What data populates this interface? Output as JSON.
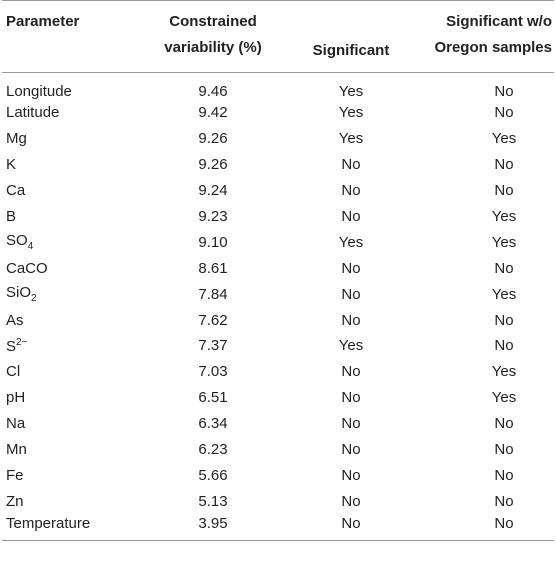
{
  "headers": {
    "parameter": "Parameter",
    "variability_line1": "Constrained",
    "variability_line2": "variability (%)",
    "significant": "Significant",
    "sig_wo_line1": "Significant w/o",
    "sig_wo_line2": "Oregon samples"
  },
  "rows": [
    {
      "name": "Longitude",
      "value": "9.46",
      "sig": "Yes",
      "sig_wo": "No"
    },
    {
      "name": "Latitude",
      "value": "9.42",
      "sig": "Yes",
      "sig_wo": "No"
    },
    {
      "name": "Mg",
      "value": "9.26",
      "sig": "Yes",
      "sig_wo": "Yes"
    },
    {
      "name": "K",
      "value": "9.26",
      "sig": "No",
      "sig_wo": "No"
    },
    {
      "name": "Ca",
      "value": "9.24",
      "sig": "No",
      "sig_wo": "No"
    },
    {
      "name": "B",
      "value": "9.23",
      "sig": "No",
      "sig_wo": "Yes"
    },
    {
      "name_base": "SO",
      "name_sub": "4",
      "value": "9.10",
      "sig": "Yes",
      "sig_wo": "Yes"
    },
    {
      "name": "CaCO",
      "value": "8.61",
      "sig": "No",
      "sig_wo": "No"
    },
    {
      "name_base": "SiO",
      "name_sub": "2",
      "value": "7.84",
      "sig": "No",
      "sig_wo": "Yes"
    },
    {
      "name": "As",
      "value": "7.62",
      "sig": "No",
      "sig_wo": "No"
    },
    {
      "name_base": "S",
      "name_sup": "2−",
      "value": "7.37",
      "sig": "Yes",
      "sig_wo": "No"
    },
    {
      "name": "Cl",
      "value": "7.03",
      "sig": "No",
      "sig_wo": "Yes"
    },
    {
      "name": "pH",
      "value": "6.51",
      "sig": "No",
      "sig_wo": "Yes"
    },
    {
      "name": "Na",
      "value": "6.34",
      "sig": "No",
      "sig_wo": "No"
    },
    {
      "name": "Mn",
      "value": "6.23",
      "sig": "No",
      "sig_wo": "No"
    },
    {
      "name": "Fe",
      "value": "5.66",
      "sig": "No",
      "sig_wo": "No"
    },
    {
      "name": "Zn",
      "value": "5.13",
      "sig": "No",
      "sig_wo": "No"
    },
    {
      "name": "Temperature",
      "value": "3.95",
      "sig": "No",
      "sig_wo": "No"
    }
  ]
}
